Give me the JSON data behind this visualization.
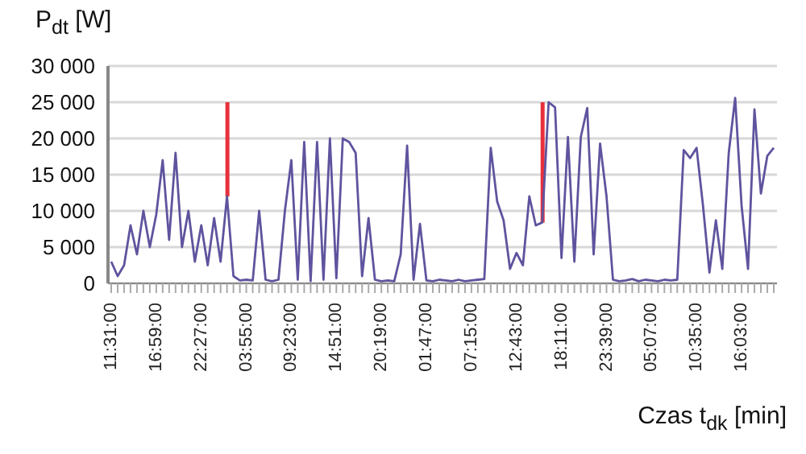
{
  "chart_data": {
    "type": "line",
    "xlabel": "Czas t$_{dk}$ [min]",
    "ylabel": "P$_{dt}$ [W]",
    "categories": [
      "11:31:00",
      null,
      null,
      null,
      null,
      null,
      null,
      "16:59:00",
      null,
      null,
      null,
      null,
      null,
      null,
      "22:27:00",
      null,
      null,
      null,
      null,
      null,
      null,
      "03:55:00",
      null,
      null,
      null,
      null,
      null,
      null,
      "09:23:00",
      null,
      null,
      null,
      null,
      null,
      null,
      "14:51:00",
      null,
      null,
      null,
      null,
      null,
      null,
      "20:19:00",
      null,
      null,
      null,
      null,
      null,
      null,
      "01:47:00",
      null,
      null,
      null,
      null,
      null,
      null,
      "07:15:00",
      null,
      null,
      null,
      null,
      null,
      null,
      "12:43:00",
      null,
      null,
      null,
      null,
      null,
      null,
      "18:11:00",
      null,
      null,
      null,
      null,
      null,
      null,
      "23:39:00",
      null,
      null,
      null,
      null,
      null,
      null,
      "05:07:00",
      null,
      null,
      null,
      null,
      null,
      null,
      "10:35:00",
      null,
      null,
      null,
      null,
      null,
      null,
      "16:03:00",
      null,
      null,
      null,
      null,
      null
    ],
    "ylim": [
      0,
      30000
    ],
    "yticks": [
      {
        "value": 0,
        "label": "0"
      },
      {
        "value": 5000,
        "label": "5 000"
      },
      {
        "value": 10000,
        "label": "10 000"
      },
      {
        "value": 15000,
        "label": "15 000"
      },
      {
        "value": 20000,
        "label": "20 000"
      },
      {
        "value": 25000,
        "label": "25 000"
      },
      {
        "value": 30000,
        "label": "30 000"
      }
    ],
    "grid": "y",
    "marker": "none",
    "line_style": "solid",
    "series": [
      {
        "color": "#5e549e",
        "values": [
          3000,
          1000,
          2500,
          8000,
          4000,
          10000,
          5000,
          9500,
          17000,
          6000,
          18000,
          5000,
          10000,
          3000,
          8000,
          2500,
          9000,
          3000,
          12000,
          1000,
          400,
          500,
          400,
          10000,
          500,
          300,
          500,
          10000,
          17000,
          500,
          19500,
          300,
          19500,
          500,
          20000,
          700,
          20000,
          19500,
          18000,
          1000,
          9000,
          500,
          300,
          400,
          300,
          4000,
          19000,
          500,
          8200,
          400,
          300,
          500,
          400,
          300,
          500,
          300,
          400,
          500,
          600,
          18700,
          11300,
          8700,
          2000,
          4200,
          2500,
          12000,
          8000,
          8400,
          25000,
          24300,
          3500,
          20200,
          3000,
          20200,
          24200,
          4000,
          19300,
          12000,
          500,
          300,
          400,
          600,
          300,
          500,
          400,
          300,
          500,
          400,
          500,
          18400,
          17300,
          18700,
          10700,
          1500,
          8700,
          2000,
          18000,
          25600,
          10700,
          2000,
          24000,
          12400,
          17600,
          18700
        ]
      },
      {
        "type": "bar",
        "color": "#e8303c",
        "base": [
          null,
          null,
          null,
          null,
          null,
          null,
          null,
          null,
          null,
          null,
          null,
          null,
          null,
          null,
          null,
          null,
          null,
          null,
          12000,
          null,
          null,
          null,
          null,
          null,
          null,
          null,
          null,
          null,
          null,
          null,
          null,
          null,
          null,
          null,
          null,
          null,
          null,
          null,
          null,
          null,
          null,
          null,
          null,
          null,
          null,
          null,
          null,
          null,
          null,
          null,
          null,
          null,
          null,
          null,
          null,
          null,
          null,
          null,
          null,
          null,
          null,
          null,
          null,
          null,
          null,
          null,
          null,
          8400,
          null,
          null,
          null,
          null,
          null,
          null,
          null,
          null,
          null,
          null,
          null,
          null,
          null,
          null,
          null,
          null,
          null,
          null,
          null,
          null,
          null,
          null,
          null,
          null,
          null,
          null,
          null,
          null,
          null,
          null,
          null,
          null,
          null,
          null,
          null,
          null
        ],
        "values": [
          null,
          null,
          null,
          null,
          null,
          null,
          null,
          null,
          null,
          null,
          null,
          null,
          null,
          null,
          null,
          null,
          null,
          null,
          13000,
          null,
          null,
          null,
          null,
          null,
          null,
          null,
          null,
          null,
          null,
          null,
          null,
          null,
          null,
          null,
          null,
          null,
          null,
          null,
          null,
          null,
          null,
          null,
          null,
          null,
          null,
          null,
          null,
          null,
          null,
          null,
          null,
          null,
          null,
          null,
          null,
          null,
          null,
          null,
          null,
          null,
          null,
          null,
          null,
          null,
          null,
          null,
          null,
          16600,
          null,
          null,
          null,
          null,
          null,
          null,
          null,
          null,
          null,
          null,
          null,
          null,
          null,
          null,
          null,
          null,
          null,
          null,
          null,
          null,
          null,
          null,
          null,
          null,
          null,
          null,
          null,
          null,
          null,
          null,
          null,
          null,
          null,
          null,
          null,
          null
        ]
      }
    ]
  }
}
